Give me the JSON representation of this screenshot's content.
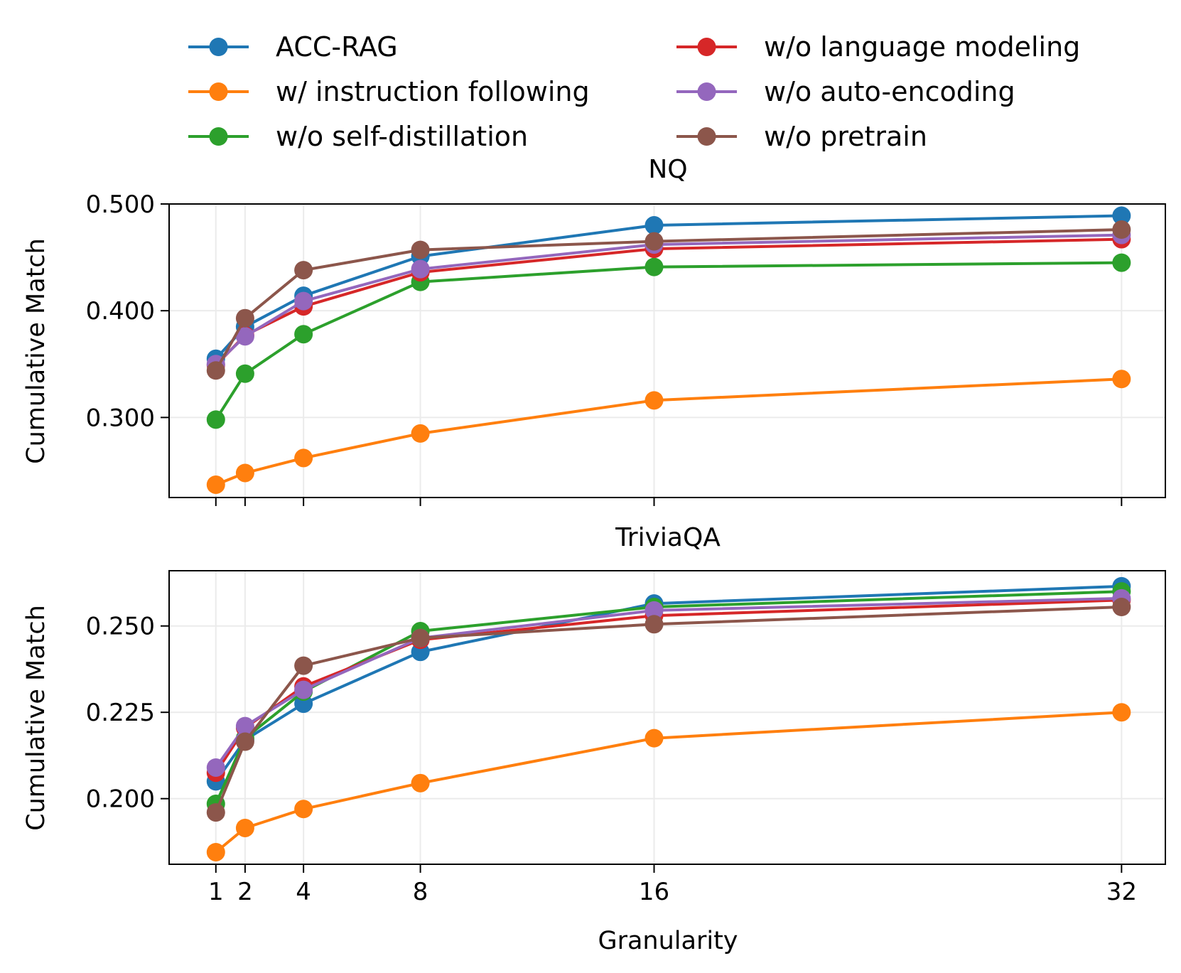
{
  "legend": [
    {
      "label": "ACC-RAG",
      "color": "#1f77b4"
    },
    {
      "label": "w/ instruction following",
      "color": "#ff7f0e"
    },
    {
      "label": "w/o self-distillation",
      "color": "#2ca02c"
    },
    {
      "label": "w/o language modeling",
      "color": "#d62728"
    },
    {
      "label": "w/o auto-encoding",
      "color": "#9467bd"
    },
    {
      "label": "w/o pretrain",
      "color": "#8c564b"
    }
  ],
  "chart_data": [
    {
      "type": "line",
      "title": "NQ",
      "xlabel": "",
      "ylabel": "Cumulative Match",
      "x": [
        1,
        2,
        4,
        8,
        16,
        32
      ],
      "xlim": [
        -0.6,
        33.5
      ],
      "ylim": [
        0.225,
        0.5
      ],
      "yticks": [
        0.3,
        0.4,
        0.5
      ],
      "ytick_labels": [
        "0.300",
        "0.400",
        "0.500"
      ],
      "xticks": [
        1,
        2,
        4,
        8,
        16,
        32
      ],
      "xtick_labels": [],
      "grid": true,
      "series": [
        {
          "name": "ACC-RAG",
          "color": "#1f77b4",
          "values": [
            0.355,
            0.385,
            0.414,
            0.451,
            0.48,
            0.489
          ]
        },
        {
          "name": "w/ instruction following",
          "color": "#ff7f0e",
          "values": [
            0.237,
            0.248,
            0.262,
            0.285,
            0.316,
            0.336
          ]
        },
        {
          "name": "w/o self-distillation",
          "color": "#2ca02c",
          "values": [
            0.298,
            0.341,
            0.378,
            0.427,
            0.441,
            0.445
          ]
        },
        {
          "name": "w/o language modeling",
          "color": "#d62728",
          "values": [
            0.349,
            0.377,
            0.404,
            0.436,
            0.458,
            0.467
          ]
        },
        {
          "name": "w/o auto-encoding",
          "color": "#9467bd",
          "values": [
            0.35,
            0.376,
            0.409,
            0.439,
            0.462,
            0.471
          ]
        },
        {
          "name": "w/o pretrain",
          "color": "#8c564b",
          "values": [
            0.344,
            0.393,
            0.438,
            0.457,
            0.465,
            0.476
          ]
        }
      ]
    },
    {
      "type": "line",
      "title": "TriviaQA",
      "xlabel": "Granularity",
      "ylabel": "Cumulative Match",
      "x": [
        1,
        2,
        4,
        8,
        16,
        32
      ],
      "xlim": [
        -0.6,
        33.5
      ],
      "ylim": [
        0.181,
        0.266
      ],
      "yticks": [
        0.2,
        0.225,
        0.25
      ],
      "ytick_labels": [
        "0.200",
        "0.225",
        "0.250"
      ],
      "xticks": [
        1,
        2,
        4,
        8,
        16,
        32
      ],
      "xtick_labels": [
        "1",
        "2",
        "4",
        "8",
        "16",
        "32"
      ],
      "grid": true,
      "series": [
        {
          "name": "ACC-RAG",
          "color": "#1f77b4",
          "values": [
            0.205,
            0.217,
            0.2275,
            0.2425,
            0.2565,
            0.2615
          ]
        },
        {
          "name": "w/ instruction following",
          "color": "#ff7f0e",
          "values": [
            0.1845,
            0.1915,
            0.197,
            0.2045,
            0.2175,
            0.225
          ]
        },
        {
          "name": "w/o self-distillation",
          "color": "#2ca02c",
          "values": [
            0.1985,
            0.2175,
            0.231,
            0.2485,
            0.2555,
            0.26
          ]
        },
        {
          "name": "w/o language modeling",
          "color": "#d62728",
          "values": [
            0.2075,
            0.2205,
            0.2325,
            0.246,
            0.253,
            0.2575
          ]
        },
        {
          "name": "w/o auto-encoding",
          "color": "#9467bd",
          "values": [
            0.209,
            0.221,
            0.2315,
            0.2465,
            0.2545,
            0.258
          ]
        },
        {
          "name": "w/o pretrain",
          "color": "#8c564b",
          "values": [
            0.196,
            0.2165,
            0.2385,
            0.2465,
            0.2505,
            0.2555
          ]
        }
      ]
    }
  ]
}
